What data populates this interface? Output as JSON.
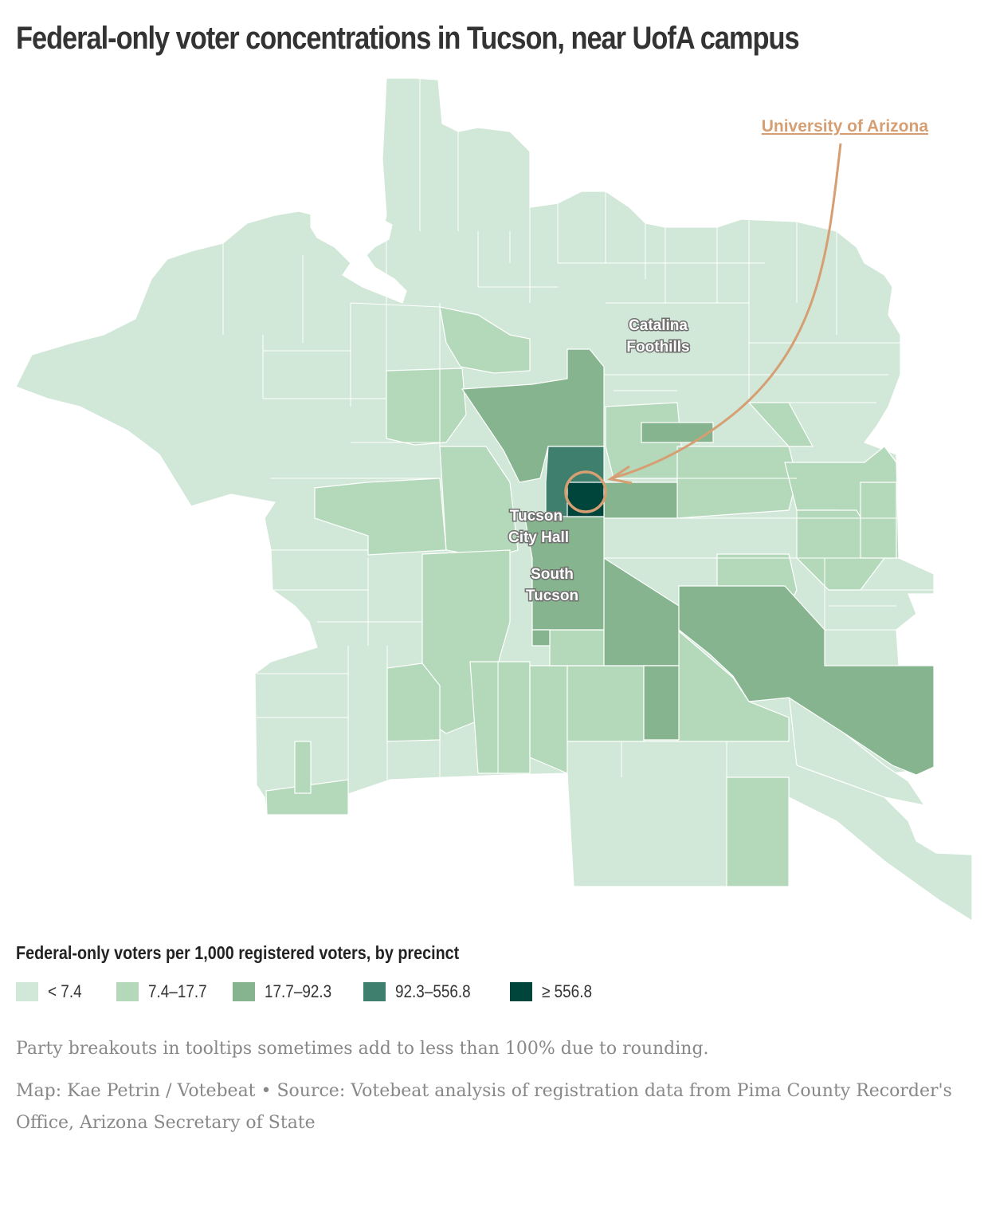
{
  "title": "Federal-only voter concentrations in Tucson, near UofA campus",
  "map": {
    "labels": {
      "catalina_foothills": [
        "Catalina",
        "Foothills"
      ],
      "city_hall": [
        "Tucson",
        "City Hall"
      ],
      "south_tucson": [
        "South",
        "Tucson"
      ],
      "university": "University of Arizona"
    },
    "annotation_color": "#d69f73"
  },
  "legend": {
    "title": "Federal-only voters per 1,000 registered voters, by precinct",
    "items": [
      {
        "label": "< 7.4",
        "color": "#d1e7d8"
      },
      {
        "label": "7.4–17.7",
        "color": "#b4d9ba"
      },
      {
        "label": "17.7–92.3",
        "color": "#85b48e"
      },
      {
        "label": "92.3–556.8",
        "color": "#3e7f6d"
      },
      {
        "label": "≥ 556.8",
        "color": "#00453b"
      }
    ]
  },
  "note": "Party breakouts in tooltips sometimes add to less than 100% due to rounding.",
  "credit": "Map: Kae Petrin / Votebeat • Source: Votebeat analysis of registration data from Pima County Recorder's Office, Arizona Secretary of State"
}
